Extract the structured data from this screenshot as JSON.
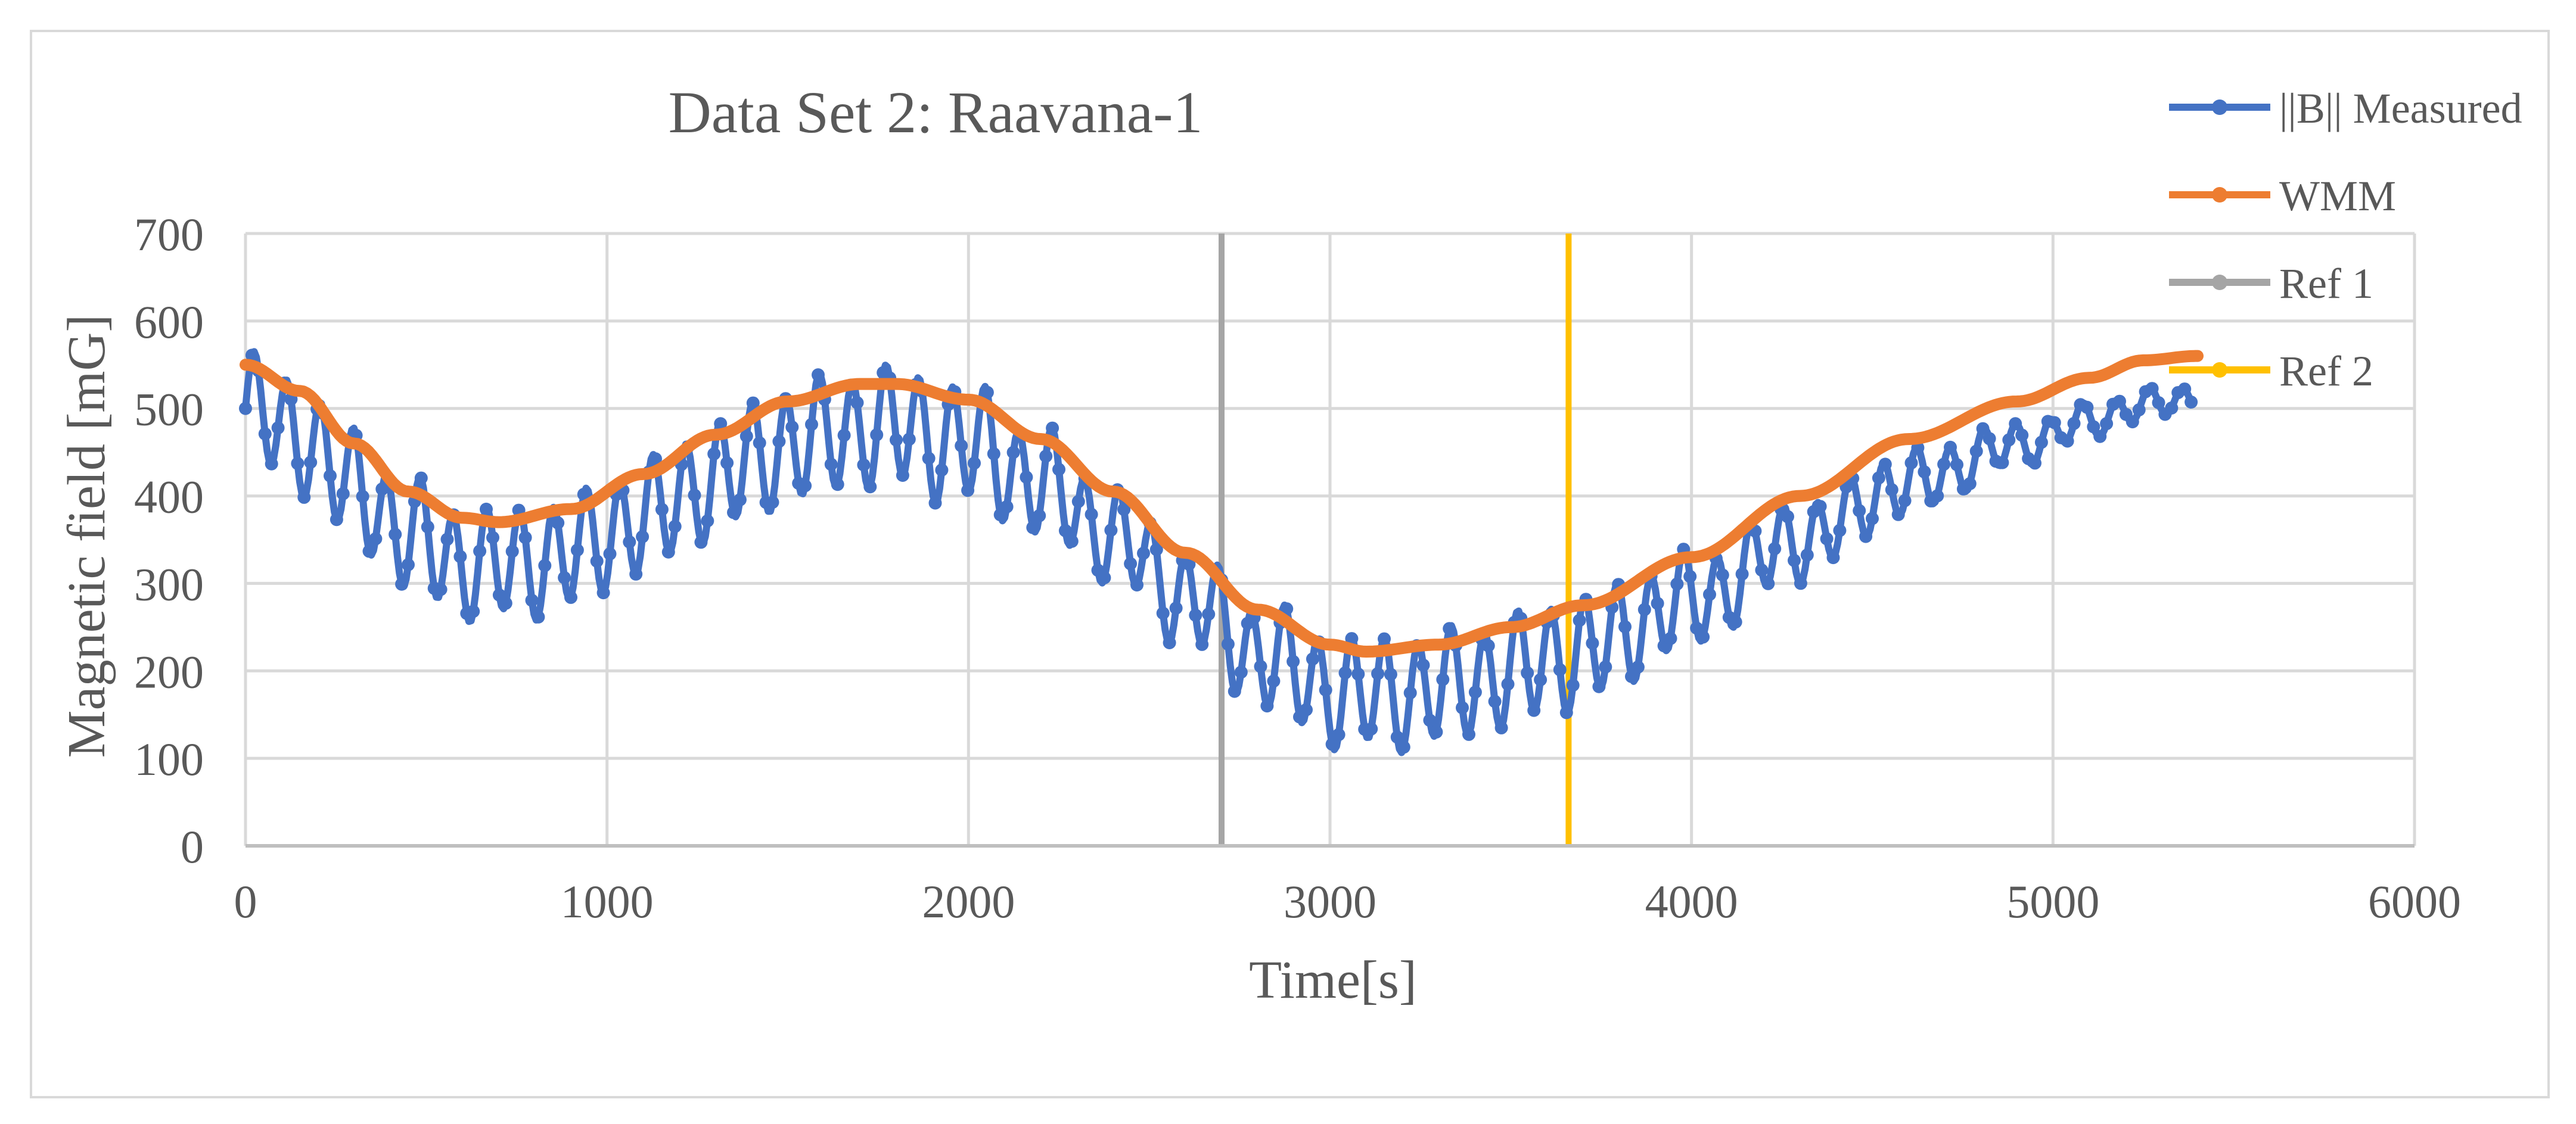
{
  "chart_data": {
    "type": "line",
    "title": "Data Set 2: Raavana-1",
    "xlabel": "Time[s]",
    "ylabel": "Magnetic field [mG]",
    "xlim": [
      0,
      6000
    ],
    "ylim": [
      0,
      700
    ],
    "xticks": [
      0,
      1000,
      2000,
      3000,
      4000,
      5000,
      6000
    ],
    "yticks": [
      0,
      100,
      200,
      300,
      400,
      500,
      600,
      700
    ],
    "grid": true,
    "legend_position": "right",
    "series": [
      {
        "name": "||B|| Measured",
        "color": "#4472C4",
        "style": "line-markers",
        "wmm_offset": 50,
        "amplitude_profile": [
          [
            0,
            60
          ],
          [
            1000,
            60
          ],
          [
            2000,
            65
          ],
          [
            2400,
            50
          ],
          [
            3000,
            60
          ],
          [
            3700,
            60
          ],
          [
            4000,
            50
          ],
          [
            4600,
            35
          ],
          [
            5000,
            20
          ],
          [
            5400,
            15
          ]
        ],
        "oscillation_period": 92,
        "x_end": 5390
      },
      {
        "name": "WMM",
        "color": "#ED7D31",
        "style": "line",
        "x": [
          0,
          150,
          300,
          450,
          600,
          700,
          900,
          1100,
          1300,
          1500,
          1700,
          1800,
          2000,
          2200,
          2400,
          2600,
          2800,
          3000,
          3100,
          3300,
          3500,
          3700,
          4000,
          4300,
          4600,
          4900,
          5100,
          5250,
          5400
        ],
        "y": [
          550,
          520,
          460,
          405,
          375,
          370,
          385,
          425,
          470,
          508,
          528,
          528,
          510,
          465,
          405,
          335,
          270,
          230,
          222,
          230,
          250,
          275,
          330,
          400,
          465,
          508,
          535,
          555,
          560
        ]
      },
      {
        "name": "Ref 1",
        "color": "#A5A5A5",
        "style": "vertical",
        "x": [
          2700,
          2700
        ],
        "y": [
          0,
          700
        ]
      },
      {
        "name": "Ref 2",
        "color": "#FFC000",
        "style": "vertical",
        "x": [
          3660,
          3660
        ],
        "y": [
          0,
          700
        ]
      }
    ]
  }
}
